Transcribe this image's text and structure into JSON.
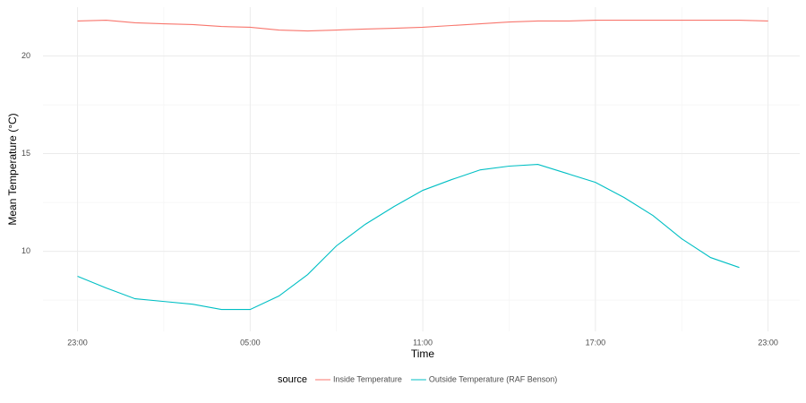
{
  "chart_data": {
    "type": "line",
    "x_label": "Time",
    "y_label": "Mean Temperature (°C)",
    "legend_title": "source",
    "legend_position": "bottom",
    "xlim": [
      -1.2,
      25.1
    ],
    "ylim": [
      5.9,
      22.5
    ],
    "xticks": [
      {
        "value": 0,
        "label": "23:00"
      },
      {
        "value": 6,
        "label": "05:00"
      },
      {
        "value": 12,
        "label": "11:00"
      },
      {
        "value": 18,
        "label": "17:00"
      },
      {
        "value": 24,
        "label": "23:00"
      }
    ],
    "yticks": [
      10,
      15,
      20
    ],
    "minor_xticks": [
      3,
      9,
      15,
      21
    ],
    "minor_yticks": [
      7.5,
      12.5,
      17.5
    ],
    "grid": true,
    "series": [
      {
        "name": "Inside Temperature",
        "color": "#F8766D",
        "x": [
          0,
          1,
          2,
          3,
          4,
          5,
          6,
          7,
          8,
          9,
          10,
          11,
          12,
          13,
          14,
          15,
          16,
          17,
          18,
          19,
          20,
          21,
          22,
          23,
          24
        ],
        "values": [
          21.79,
          21.83,
          21.7,
          21.65,
          21.61,
          21.51,
          21.47,
          21.33,
          21.28,
          21.33,
          21.38,
          21.42,
          21.47,
          21.56,
          21.65,
          21.74,
          21.79,
          21.79,
          21.83,
          21.83,
          21.83,
          21.83,
          21.83,
          21.83,
          21.79
        ]
      },
      {
        "name": "Outside Temperature (RAF Benson)",
        "color": "#00BFC4",
        "x": [
          0,
          1,
          2,
          3,
          4,
          5,
          6,
          7,
          8,
          9,
          10,
          11,
          12,
          13,
          14,
          15,
          16,
          17,
          18,
          19,
          20,
          21,
          22,
          23
        ],
        "values": [
          8.72,
          8.12,
          7.57,
          7.43,
          7.29,
          7.02,
          7.02,
          7.71,
          8.81,
          10.28,
          11.38,
          12.29,
          13.12,
          13.67,
          14.17,
          14.36,
          14.45,
          13.99,
          13.53,
          12.75,
          11.83,
          10.64,
          9.68,
          9.17
        ]
      }
    ]
  }
}
